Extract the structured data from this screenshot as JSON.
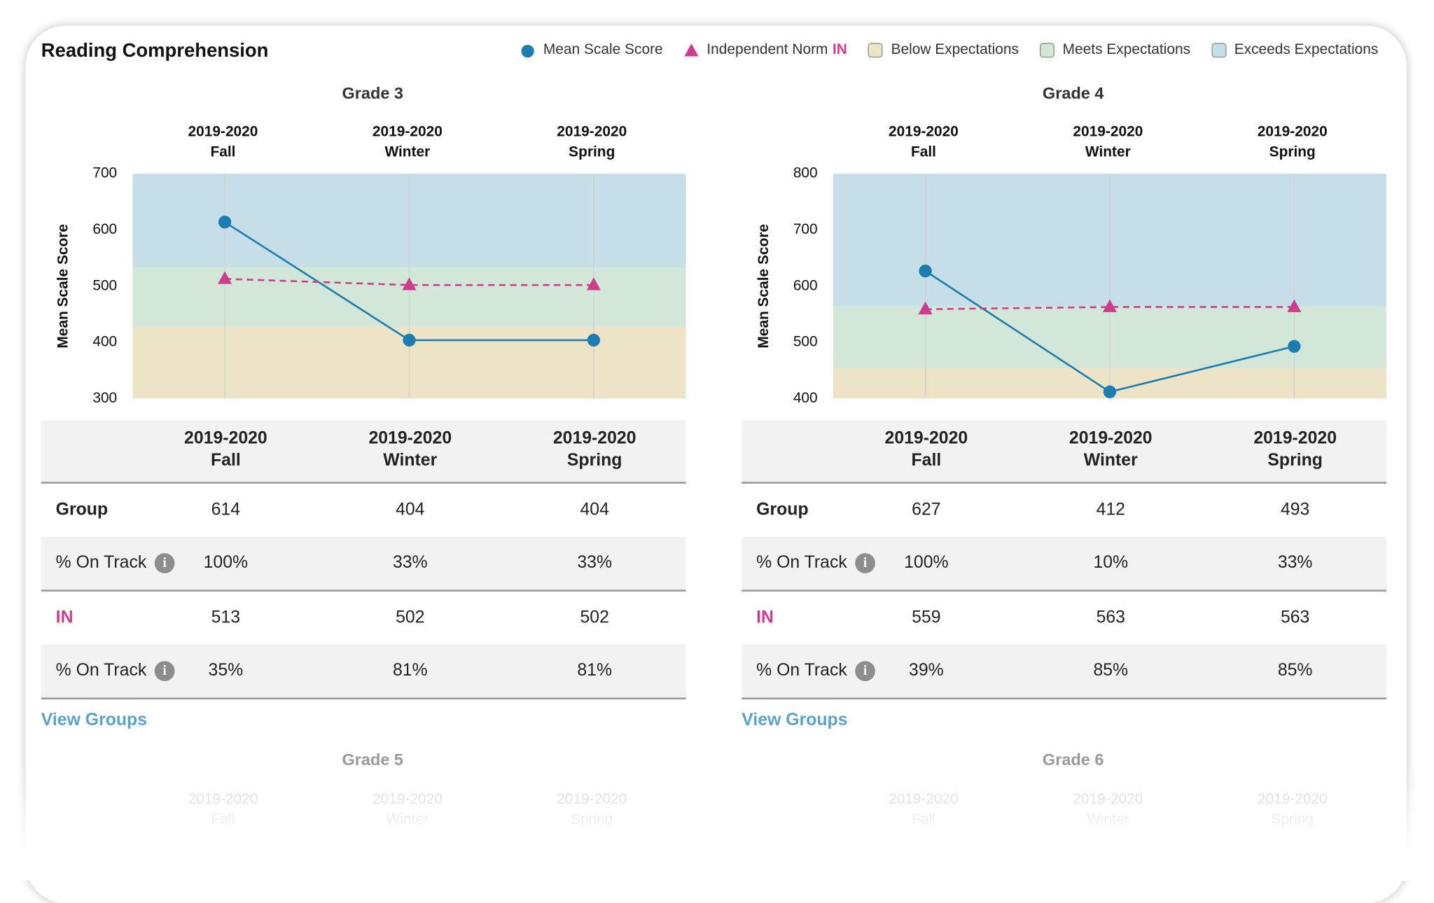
{
  "title": "Reading Comprehension",
  "legend_abbr": "IN",
  "bands_legend": [
    {
      "label": "Below Expectations",
      "color": "#ede3c7"
    },
    {
      "label": "Meets Expectations",
      "color": "#d3e7d9"
    },
    {
      "label": "Exceeds Expectations",
      "color": "#c6dee7"
    }
  ],
  "chart_data": [
    {
      "type": "line",
      "title": "Grade 3",
      "y_label": "Mean Scale Score",
      "categories": [
        "2019-2020\nFall",
        "2019-2020\nWinter",
        "2019-2020\nSpring"
      ],
      "series": [
        {
          "name": "Mean Scale Score",
          "color": "#1c7db0",
          "marker": "circle",
          "values": [
            614,
            404,
            404
          ]
        },
        {
          "name": "Independent Norm",
          "color": "#cc3d8c",
          "marker": "triangle",
          "dashed": true,
          "values": [
            513,
            502,
            502
          ]
        }
      ],
      "ylim": [
        300,
        700
      ],
      "yticks": [
        300,
        400,
        500,
        600,
        700
      ],
      "grid": "x",
      "bands": [
        {
          "from": 300,
          "to": 428
        },
        {
          "from": 428,
          "to": 534
        },
        {
          "from": 534,
          "to": 700
        }
      ]
    },
    {
      "type": "line",
      "title": "Grade 4",
      "y_label": "Mean Scale Score",
      "categories": [
        "2019-2020\nFall",
        "2019-2020\nWinter",
        "2019-2020\nSpring"
      ],
      "series": [
        {
          "color": "#1c7db0",
          "marker": "circle",
          "values": [
            627,
            412,
            493
          ]
        },
        {
          "color": "#cc3d8c",
          "marker": "triangle",
          "dashed": true,
          "values": [
            559,
            563,
            563
          ]
        }
      ],
      "ylim": [
        400,
        800
      ],
      "yticks": [
        400,
        500,
        600,
        700,
        800
      ],
      "grid": "x",
      "bands": [
        {
          "from": 400,
          "to": 454
        },
        {
          "from": 454,
          "to": 564
        },
        {
          "from": 564,
          "to": 800
        }
      ]
    }
  ],
  "tables": [
    {
      "rows": [
        {
          "label": "Group"
        },
        {
          "label": "% On Track",
          "values": [
            "100%",
            "33%",
            "33%"
          ]
        },
        {
          "label": "IN"
        },
        {
          "label": "% On Track",
          "values": [
            "35%",
            "81%",
            "81%"
          ]
        }
      ],
      "link": "View Groups"
    },
    {
      "rows": [
        {
          "label": "Group"
        },
        {
          "label": "% On Track",
          "values": [
            "100%",
            "10%",
            "33%"
          ]
        },
        {
          "label": "IN"
        },
        {
          "label": "% On Track",
          "values": [
            "39%",
            "85%",
            "85%"
          ]
        }
      ],
      "link": "View Groups"
    }
  ],
  "faded": [
    {
      "title": "Grade 5",
      "categories": [
        "2019-2020\nFall",
        "2019-2020\nWinter",
        "2019-2020\nSpring"
      ]
    },
    {
      "title": "Grade 6",
      "categories": [
        "2019-2020\nFall",
        "2019-2020\nWinter",
        "2019-2020\nSpring"
      ]
    }
  ]
}
